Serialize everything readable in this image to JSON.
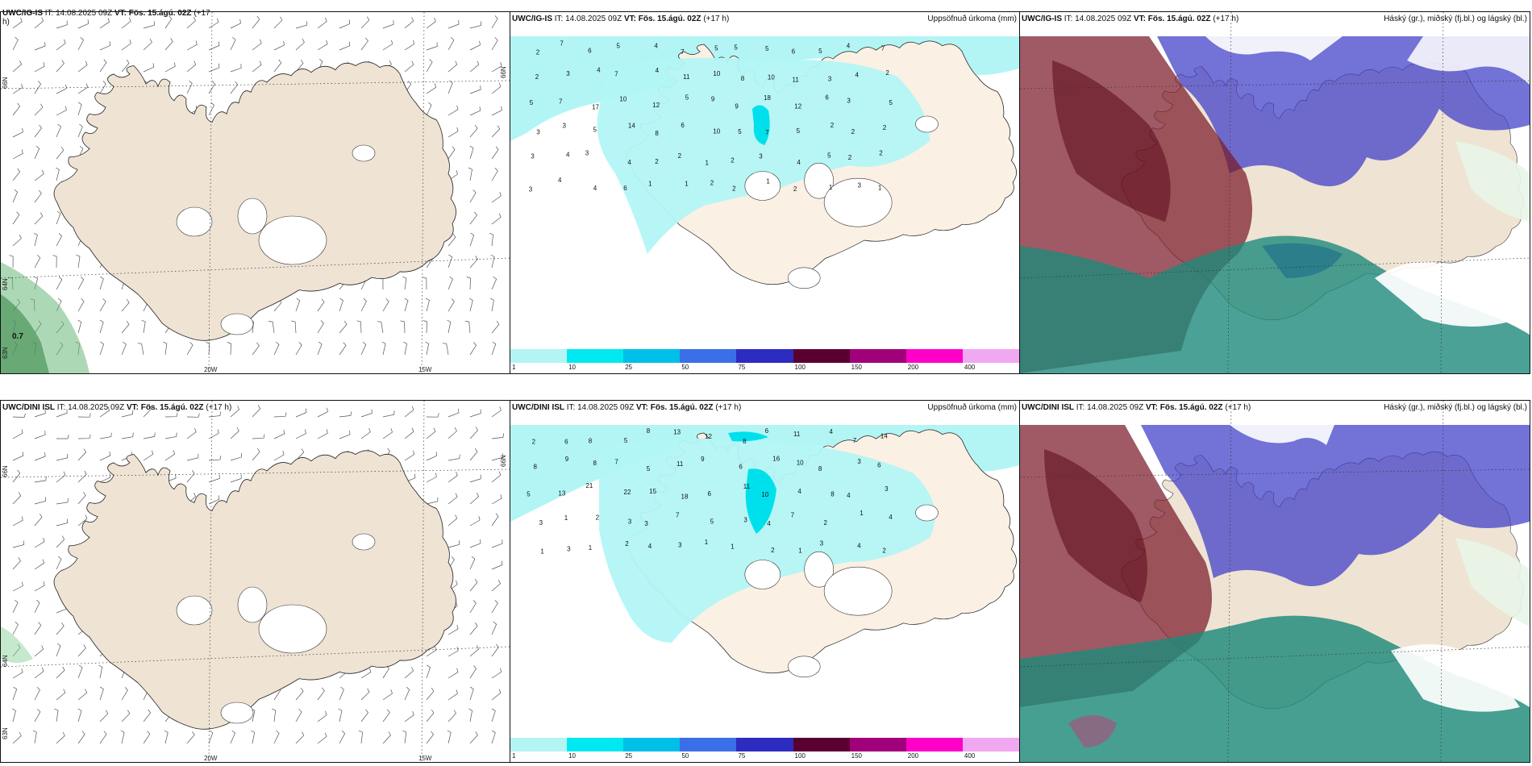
{
  "panels": {
    "top_left": {
      "title_prefix": "UWC/IG-IS",
      "title_it": " IT: 14.08.2025 09Z ",
      "title_vt": "VT: Fös. 15.ágú. 02Z",
      "title_suffix": " (+17",
      "title_wrap": "h)",
      "annotation": "0.7"
    },
    "top_mid": {
      "title_prefix": "UWC/IG-IS",
      "title_it": " IT: 14.08.2025 09Z ",
      "title_vt": "VT: Fös. 15.ágú. 02Z",
      "title_suffix": " (+17 h)",
      "right": "Uppsöfnuð úrkoma (mm)"
    },
    "top_right": {
      "title_prefix": "UWC/IG-IS",
      "title_it": " IT: 14.08.2025 09Z ",
      "title_vt": "VT: Fös. 15.ágú. 02Z",
      "title_suffix": " (+17 h)",
      "right": "Háský (gr.), miðský (fj.bl.) og lágský (bl.)"
    },
    "bot_left": {
      "title_prefix": "UWC/DINI ISL",
      "title_it": " IT: 14.08.2025 09Z ",
      "title_vt": "VT: Fös. 15.ágú. 02Z",
      "title_suffix": " (+17 h)"
    },
    "bot_mid": {
      "title_prefix": "UWC/DINI ISL",
      "title_it": " IT: 14.08.2025 09Z ",
      "title_vt": "VT: Fös. 15.ágú. 02Z",
      "title_suffix": " (+17 h)",
      "right": "Uppsöfnuð úrkoma (mm)"
    },
    "bot_right": {
      "title_prefix": "UWC/DINI ISL",
      "title_it": " IT: 14.08.2025 09Z ",
      "title_vt": "VT: Fös. 15.ágú. 02Z",
      "title_suffix": " (+17 h)",
      "right": "Háský (gr.), miðský (fj.bl.) og lágský (bl.)"
    }
  },
  "axis_labels": {
    "lon_20": "20W",
    "lon_15": "15W",
    "lat_66": "66N",
    "lat_64": "64N",
    "lat_63": "63N"
  },
  "colorbar": {
    "ticks": [
      "1",
      "10",
      "25",
      "50",
      "75",
      "100",
      "150",
      "200",
      "400"
    ],
    "colors": [
      "#b3f5f5",
      "#00e8f0",
      "#00bfe8",
      "#3b6fe8",
      "#2c2cc0",
      "#5a0030",
      "#a0007a",
      "#ff00c8",
      "#f0a8f0"
    ]
  },
  "colors": {
    "land": "#efe3d4",
    "land_light": "#fbf0e4",
    "precip_light": "#b3f5f5",
    "precip_mid": "#00e0ec",
    "high_cloud": "#7a2a2a",
    "mid_cloud": "#4a4ac8",
    "low_cloud": "#1e8a7a"
  },
  "precip_top": [
    "2",
    "7",
    "6",
    "5",
    "4",
    "7",
    "5",
    "5",
    "5",
    "6",
    "5",
    "4",
    "7",
    "2",
    "3",
    "4",
    "7",
    "4",
    "11",
    "10",
    "8",
    "10",
    "11",
    "3",
    "4",
    "2",
    "5",
    "7",
    "17",
    "10",
    "12",
    "5",
    "9",
    "9",
    "18",
    "12",
    "6",
    "3",
    "5",
    "3",
    "3",
    "5",
    "14",
    "8",
    "6",
    "10",
    "5",
    "7",
    "5",
    "2",
    "2",
    "2",
    "3",
    "4",
    "3",
    "4",
    "2",
    "2",
    "1",
    "2",
    "3",
    "4",
    "5",
    "2",
    "2",
    "3",
    "4",
    "4",
    "6",
    "1",
    "1",
    "2",
    "2",
    "1",
    "2",
    "1",
    "3",
    "1"
  ],
  "precip_bot": [
    "2",
    "6",
    "8",
    "5",
    "8",
    "13",
    "12",
    "8",
    "6",
    "11",
    "4",
    "7",
    "14",
    "8",
    "9",
    "8",
    "7",
    "5",
    "11",
    "9",
    "6",
    "16",
    "10",
    "8",
    "3",
    "6",
    "5",
    "13",
    "21",
    "22",
    "15",
    "18",
    "6",
    "11",
    "10",
    "4",
    "8",
    "4",
    "3",
    "3",
    "1",
    "2",
    "3",
    "3",
    "7",
    "5",
    "3",
    "4",
    "7",
    "2",
    "1",
    "4",
    "1",
    "3",
    "1",
    "2",
    "4",
    "3",
    "1",
    "1",
    "2",
    "1",
    "3",
    "4",
    "2"
  ]
}
